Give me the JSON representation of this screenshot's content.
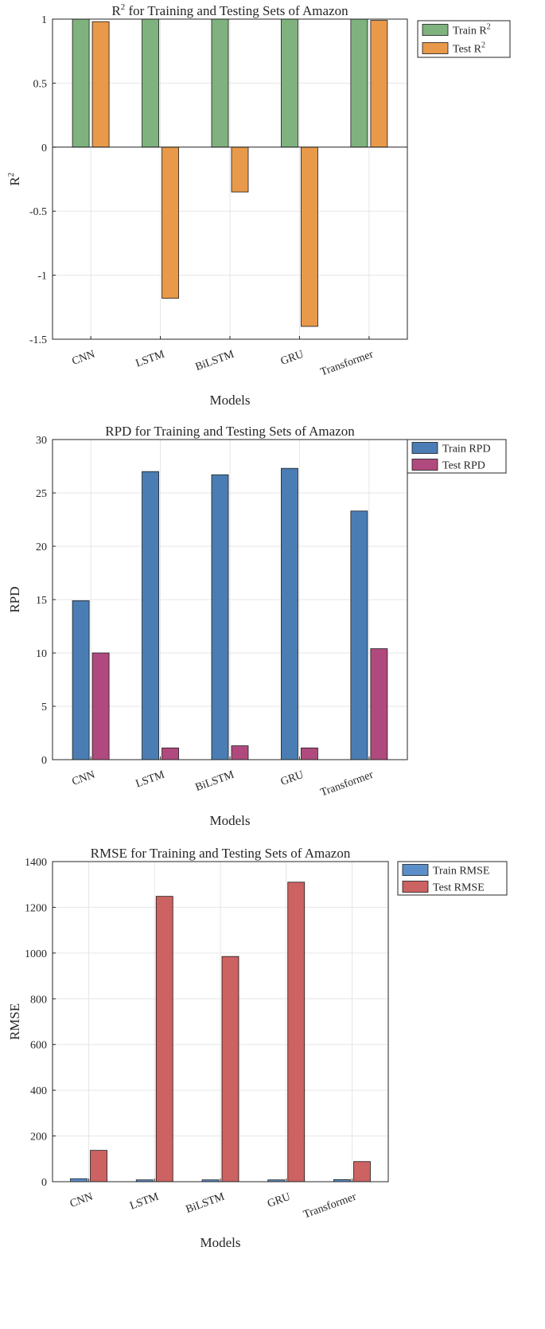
{
  "chart_data": [
    {
      "type": "bar",
      "title_main": "R",
      "title_sup": "2",
      "title_rest": " for Training and Testing Sets of Amazon",
      "xlabel": "Models",
      "ylabel_main": "R",
      "ylabel_sup": "2",
      "categories": [
        "CNN",
        "LSTM",
        "BiLSTM",
        "GRU",
        "Transformer"
      ],
      "ylim": [
        -1.5,
        1
      ],
      "yticks": [
        -1.5,
        -1,
        -0.5,
        0,
        0.5,
        1
      ],
      "ytick_labels": [
        "-1.5",
        "-1",
        "-0.5",
        "0",
        "0.5",
        "1"
      ],
      "grid": true,
      "legend_position": "top-right",
      "series": [
        {
          "name_main": "Train R",
          "name_sup": "2",
          "color": "#7fb27e",
          "values": [
            0.999,
            1.0,
            1.0,
            1.0,
            0.999
          ]
        },
        {
          "name_main": "Test R",
          "name_sup": "2",
          "color": "#e8994a",
          "values": [
            0.98,
            -1.18,
            -0.35,
            -1.4,
            0.99
          ]
        }
      ]
    },
    {
      "type": "bar",
      "title_main": "RPD for Training and Testing Sets of Amazon",
      "title_sup": "",
      "title_rest": "",
      "xlabel": "Models",
      "ylabel_main": "RPD",
      "ylabel_sup": "",
      "categories": [
        "CNN",
        "LSTM",
        "BiLSTM",
        "GRU",
        "Transformer"
      ],
      "ylim": [
        0,
        30
      ],
      "yticks": [
        0,
        5,
        10,
        15,
        20,
        25,
        30
      ],
      "ytick_labels": [
        "0",
        "5",
        "10",
        "15",
        "20",
        "25",
        "30"
      ],
      "grid": true,
      "legend_position": "top-right",
      "series": [
        {
          "name_main": "Train RPD",
          "name_sup": "",
          "color": "#4a7db3",
          "values": [
            14.9,
            27.0,
            26.7,
            27.3,
            23.3
          ]
        },
        {
          "name_main": "Test RPD",
          "name_sup": "",
          "color": "#b04a7e",
          "values": [
            10.0,
            1.1,
            1.3,
            1.1,
            10.4
          ]
        }
      ]
    },
    {
      "type": "bar",
      "title_main": "RMSE for Training and Testing Sets of Amazon",
      "title_sup": "",
      "title_rest": "",
      "xlabel": "Models",
      "ylabel_main": "RMSE",
      "ylabel_sup": "",
      "categories": [
        "CNN",
        "LSTM",
        "BiLSTM",
        "GRU",
        "Transformer"
      ],
      "ylim": [
        0,
        1400
      ],
      "yticks": [
        0,
        200,
        400,
        600,
        800,
        1000,
        1200,
        1400
      ],
      "ytick_labels": [
        "0",
        "200",
        "400",
        "600",
        "800",
        "1000",
        "1200",
        "1400"
      ],
      "grid": true,
      "legend_position": "top-right",
      "series": [
        {
          "name_main": "Train RMSE",
          "name_sup": "",
          "color": "#5b8fc9",
          "values": [
            13,
            8,
            8,
            8,
            9
          ]
        },
        {
          "name_main": "Test RMSE",
          "name_sup": "",
          "color": "#cc6262",
          "values": [
            137,
            1248,
            985,
            1310,
            88
          ]
        }
      ]
    }
  ]
}
